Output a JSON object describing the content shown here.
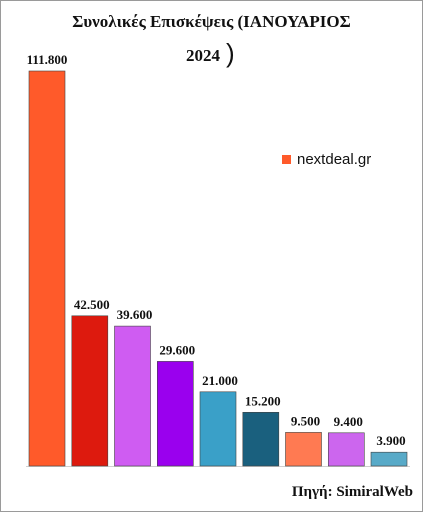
{
  "title": {
    "line1": "Συνολικές Επισκέψεις (ΙΑΝΟΥΑΡΙΟΣ",
    "line2": "2024",
    "paren": ")"
  },
  "legend": {
    "label": "nextdeal.gr",
    "color": "#ff5a2a"
  },
  "source": "Πηγή: SimiralWeb",
  "chart_data": {
    "type": "bar",
    "title": "Συνολικές Επισκέψεις (ΙΑΝΟΥΑΡΙΟΣ 2024)",
    "categories": [
      "",
      "",
      "",
      "",
      "",
      "",
      "",
      "",
      ""
    ],
    "values": [
      111800,
      42500,
      39600,
      29600,
      21000,
      15200,
      9500,
      9400,
      3900
    ],
    "labels": [
      "111.800",
      "42.500",
      "39.600",
      "29.600",
      "21.000",
      "15.200",
      "9.500",
      "9.400",
      "3.900"
    ],
    "colors": [
      "#ff5a2a",
      "#dd1a0e",
      "#cf5cf2",
      "#9a00ee",
      "#3aa0c8",
      "#1a607e",
      "#ff7a52",
      "#cc66ee",
      "#58aac8"
    ],
    "xlabel": "",
    "ylabel": "",
    "ylim": [
      0,
      111800
    ],
    "grid": false,
    "legend_position": "right",
    "series": [
      {
        "name": "nextdeal.gr",
        "values": [
          111800,
          42500,
          39600,
          29600,
          21000,
          15200,
          9500,
          9400,
          3900
        ]
      }
    ]
  }
}
